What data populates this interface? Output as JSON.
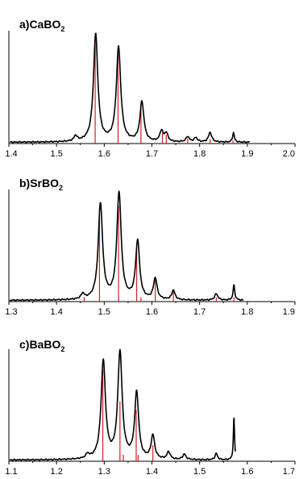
{
  "chart_data": [
    {
      "type": "line",
      "title": "a)CaBO",
      "title_subscript": "2",
      "xlim": [
        1.4,
        2.0
      ],
      "xticks": [
        "1.4",
        "1.5",
        "1.6",
        "1.7",
        "1.8",
        "1.9",
        "2.0"
      ],
      "ylim": [
        0,
        1.05
      ],
      "grid": false,
      "colors": {
        "spectrum": "#000000",
        "sticks": "#cc2222"
      },
      "spectrum_peaks": [
        {
          "x": 1.54,
          "h": 0.05,
          "w": 0.004
        },
        {
          "x": 1.582,
          "h": 1.0,
          "w": 0.0055
        },
        {
          "x": 1.63,
          "h": 0.88,
          "w": 0.0055
        },
        {
          "x": 1.679,
          "h": 0.37,
          "w": 0.005
        },
        {
          "x": 1.72,
          "h": 0.1,
          "w": 0.004
        },
        {
          "x": 1.73,
          "h": 0.08,
          "w": 0.004
        },
        {
          "x": 1.775,
          "h": 0.05,
          "w": 0.004
        },
        {
          "x": 1.792,
          "h": 0.04,
          "w": 0.004
        },
        {
          "x": 1.822,
          "h": 0.09,
          "w": 0.004
        },
        {
          "x": 1.871,
          "h": 0.09,
          "w": 0.0022
        }
      ],
      "stick_x": [
        1.581,
        1.629,
        1.677,
        1.722,
        1.73,
        1.775,
        1.822,
        1.87
      ],
      "stick_y": [
        0.94,
        0.85,
        0.37,
        0.1,
        0.08,
        0.05,
        0.04,
        0.03
      ],
      "spectrum_end": 1.905
    },
    {
      "type": "line",
      "title": "b)SrBO",
      "title_subscript": "2",
      "xlim": [
        1.3,
        1.9
      ],
      "xticks": [
        "1.3",
        "1.4",
        "1.5",
        "1.6",
        "1.7",
        "1.8",
        "1.9"
      ],
      "ylim": [
        0,
        1.05
      ],
      "grid": false,
      "colors": {
        "spectrum": "#000000",
        "sticks": "#cc2222"
      },
      "spectrum_peaks": [
        {
          "x": 1.455,
          "h": 0.05,
          "w": 0.004
        },
        {
          "x": 1.492,
          "h": 0.9,
          "w": 0.0055
        },
        {
          "x": 1.531,
          "h": 1.0,
          "w": 0.0055
        },
        {
          "x": 1.57,
          "h": 0.55,
          "w": 0.005
        },
        {
          "x": 1.607,
          "h": 0.2,
          "w": 0.0045
        },
        {
          "x": 1.645,
          "h": 0.09,
          "w": 0.004
        },
        {
          "x": 1.735,
          "h": 0.06,
          "w": 0.004
        },
        {
          "x": 1.772,
          "h": 0.14,
          "w": 0.0022
        }
      ],
      "stick_x": [
        1.458,
        1.49,
        1.53,
        1.568,
        1.577,
        1.607,
        1.645,
        1.735,
        1.772
      ],
      "stick_y": [
        0.04,
        0.87,
        0.9,
        0.48,
        0.04,
        0.21,
        0.1,
        0.04,
        0.04
      ],
      "spectrum_end": 1.792
    },
    {
      "type": "line",
      "title": "c)BaBO",
      "title_subscript": "2",
      "xlim": [
        1.1,
        1.7
      ],
      "xticks": [
        "1.1",
        "1.2",
        "1.3",
        "1.4",
        "1.5",
        "1.6",
        "1.7"
      ],
      "ylim": [
        0,
        1.05
      ],
      "grid": false,
      "colors": {
        "spectrum": "#000000",
        "sticks": "#cc2222"
      },
      "spectrum_peaks": [
        {
          "x": 1.265,
          "h": 0.04,
          "w": 0.004
        },
        {
          "x": 1.298,
          "h": 0.92,
          "w": 0.0055
        },
        {
          "x": 1.333,
          "h": 1.0,
          "w": 0.0055
        },
        {
          "x": 1.368,
          "h": 0.62,
          "w": 0.005
        },
        {
          "x": 1.402,
          "h": 0.22,
          "w": 0.0045
        },
        {
          "x": 1.435,
          "h": 0.07,
          "w": 0.004
        },
        {
          "x": 1.468,
          "h": 0.05,
          "w": 0.004
        },
        {
          "x": 1.535,
          "h": 0.06,
          "w": 0.003
        },
        {
          "x": 1.572,
          "h": 0.4,
          "w": 0.0015
        }
      ],
      "stick_x": [
        1.297,
        1.333,
        1.34,
        1.367,
        1.371,
        1.402
      ],
      "stick_y": [
        0.86,
        0.56,
        0.06,
        0.48,
        0.06,
        0.15
      ],
      "spectrum_end": 1.575
    }
  ]
}
